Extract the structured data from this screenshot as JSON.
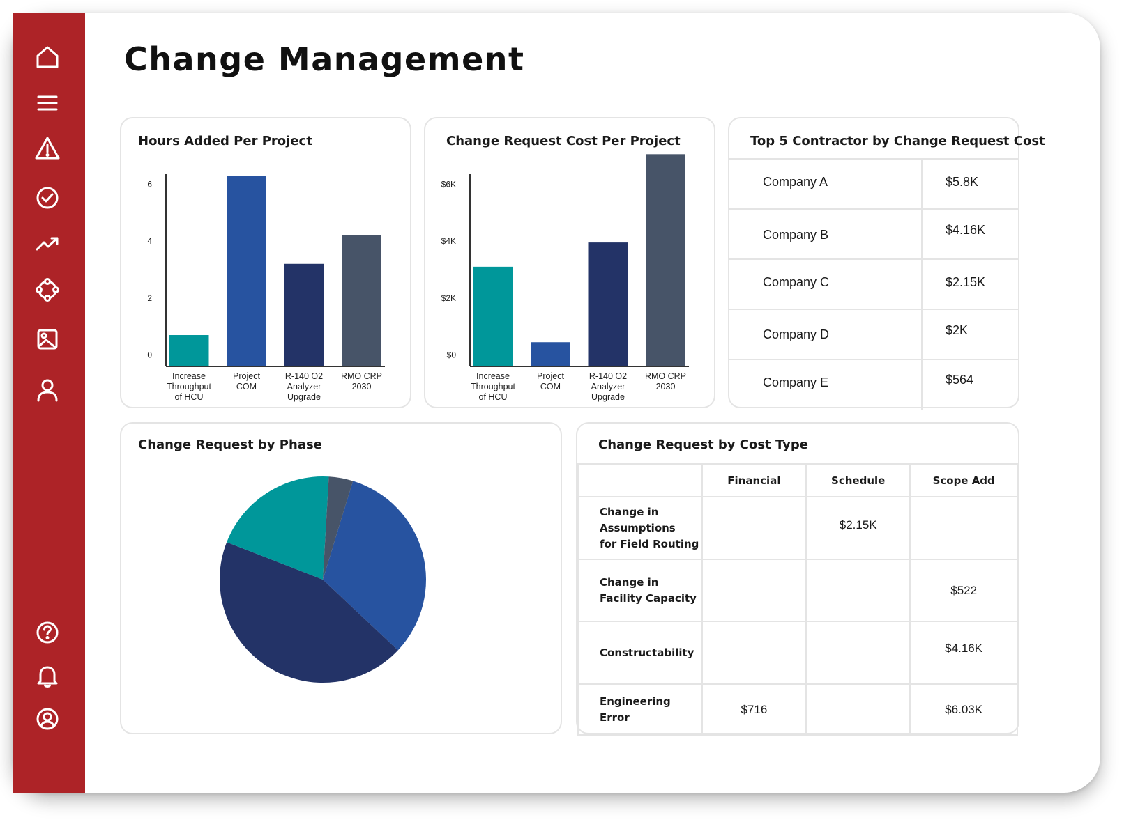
{
  "page": {
    "title": "Change Management"
  },
  "colors": {
    "sidebar": "#ad2327",
    "teal": "#00979a",
    "blue": "#2753a0",
    "navy": "#233367",
    "slate": "#475468"
  },
  "sidebar": {
    "top_icons": [
      "home-icon",
      "menu-icon",
      "warning-icon",
      "check-circle-icon",
      "trending-up-icon",
      "network-icon",
      "image-icon",
      "user-icon"
    ],
    "bottom_icons": [
      "help-icon",
      "bell-icon",
      "account-icon"
    ]
  },
  "hours_chart": {
    "title": "Hours Added Per Project",
    "chart_data": {
      "type": "bar",
      "categories": [
        "Increase Throughput of HCU",
        "Project COM",
        "R-140 O2 Analyzer Upgrade",
        "RMO CRP 2030"
      ],
      "category_lines": [
        [
          "Increase",
          "Throughput",
          "of HCU"
        ],
        [
          "Project",
          "COM"
        ],
        [
          "R-140 O2",
          "Analyzer",
          "Upgrade"
        ],
        [
          "RMO CRP",
          "2030"
        ]
      ],
      "values": [
        0.7,
        6.3,
        3.2,
        4.2
      ],
      "colors": [
        "#00979a",
        "#2753a0",
        "#233367",
        "#475468"
      ],
      "yticks": [
        0,
        2,
        4,
        6
      ],
      "ytick_labels": [
        "0",
        "2",
        "4",
        "6"
      ],
      "ylim": [
        -0.4,
        6.3
      ],
      "title": "Hours Added Per Project"
    }
  },
  "cost_chart": {
    "title": "Change Request Cost Per Project",
    "chart_data": {
      "type": "bar",
      "categories": [
        "Increase Throughput of HCU",
        "Project COM",
        "R-140 O2 Analyzer Upgrade",
        "RMO CRP 2030"
      ],
      "category_lines": [
        [
          "Increase",
          "Throughput",
          "of HCU"
        ],
        [
          "Project",
          "COM"
        ],
        [
          "R-140 O2",
          "Analyzer",
          "Upgrade"
        ],
        [
          "RMO CRP",
          "2030"
        ]
      ],
      "values": [
        3100,
        450,
        3950,
        7050
      ],
      "colors": [
        "#00979a",
        "#2753a0",
        "#233367",
        "#475468"
      ],
      "yticks": [
        0,
        2000,
        4000,
        6000
      ],
      "ytick_labels": [
        "$0",
        "$2K",
        "$4K",
        "$6K"
      ],
      "ylim": [
        -400,
        6300
      ],
      "title": "Change Request Cost Per Project"
    }
  },
  "top5": {
    "title": "Top 5 Contractor by Change Request Cost",
    "rows": [
      {
        "name": "Company A",
        "value": "$5.8K"
      },
      {
        "name": "Company B",
        "value": "$4.16K"
      },
      {
        "name": "Company C",
        "value": "$2.15K"
      },
      {
        "name": "Company D",
        "value": "$2K"
      },
      {
        "name": "Company E",
        "value": "$564"
      }
    ]
  },
  "phase_chart": {
    "title": "Change Request by Phase",
    "chart_data": {
      "type": "pie",
      "values": [
        32.3,
        43.9,
        20.0,
        3.8
      ],
      "colors": [
        "#2753a0",
        "#233367",
        "#00979a",
        "#475468"
      ],
      "start_angle_deg": 17.0
    }
  },
  "cost_type": {
    "title": "Change Request by Cost Type",
    "columns": [
      "",
      "Financial",
      "Schedule",
      "Scope Add"
    ],
    "rows": [
      {
        "label": "Change in\nAssumptions\nfor Field Routing",
        "financial": "",
        "schedule": "$2.15K",
        "scope_add": ""
      },
      {
        "label": "Change in\nFacility Capacity",
        "financial": "",
        "schedule": "",
        "scope_add": "$522"
      },
      {
        "label": "Constructability",
        "financial": "",
        "schedule": "",
        "scope_add": "$4.16K"
      },
      {
        "label": "Engineering\nError",
        "financial": "$716",
        "schedule": "",
        "scope_add": "$6.03K"
      }
    ]
  }
}
